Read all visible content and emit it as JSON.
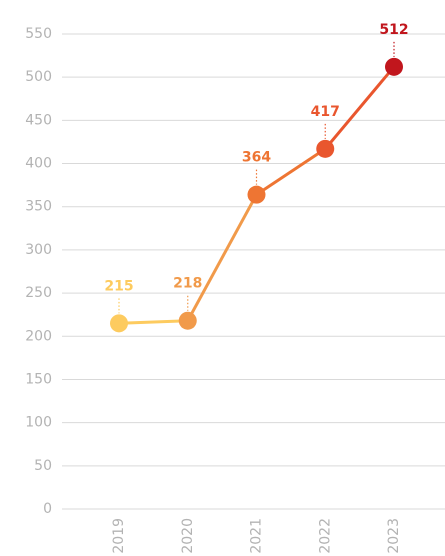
{
  "chart_data": {
    "type": "line",
    "categories": [
      "2019",
      "2020",
      "2021",
      "2022",
      "2023"
    ],
    "values": [
      215,
      218,
      364,
      417,
      512
    ],
    "colors": [
      "#fdcb5f",
      "#f19a4a",
      "#ee7533",
      "#e9562e",
      "#c1161d"
    ],
    "ylim": [
      0,
      550
    ],
    "yticks": [
      0,
      50,
      100,
      150,
      200,
      250,
      300,
      350,
      400,
      450,
      500,
      550
    ],
    "grid": true
  }
}
